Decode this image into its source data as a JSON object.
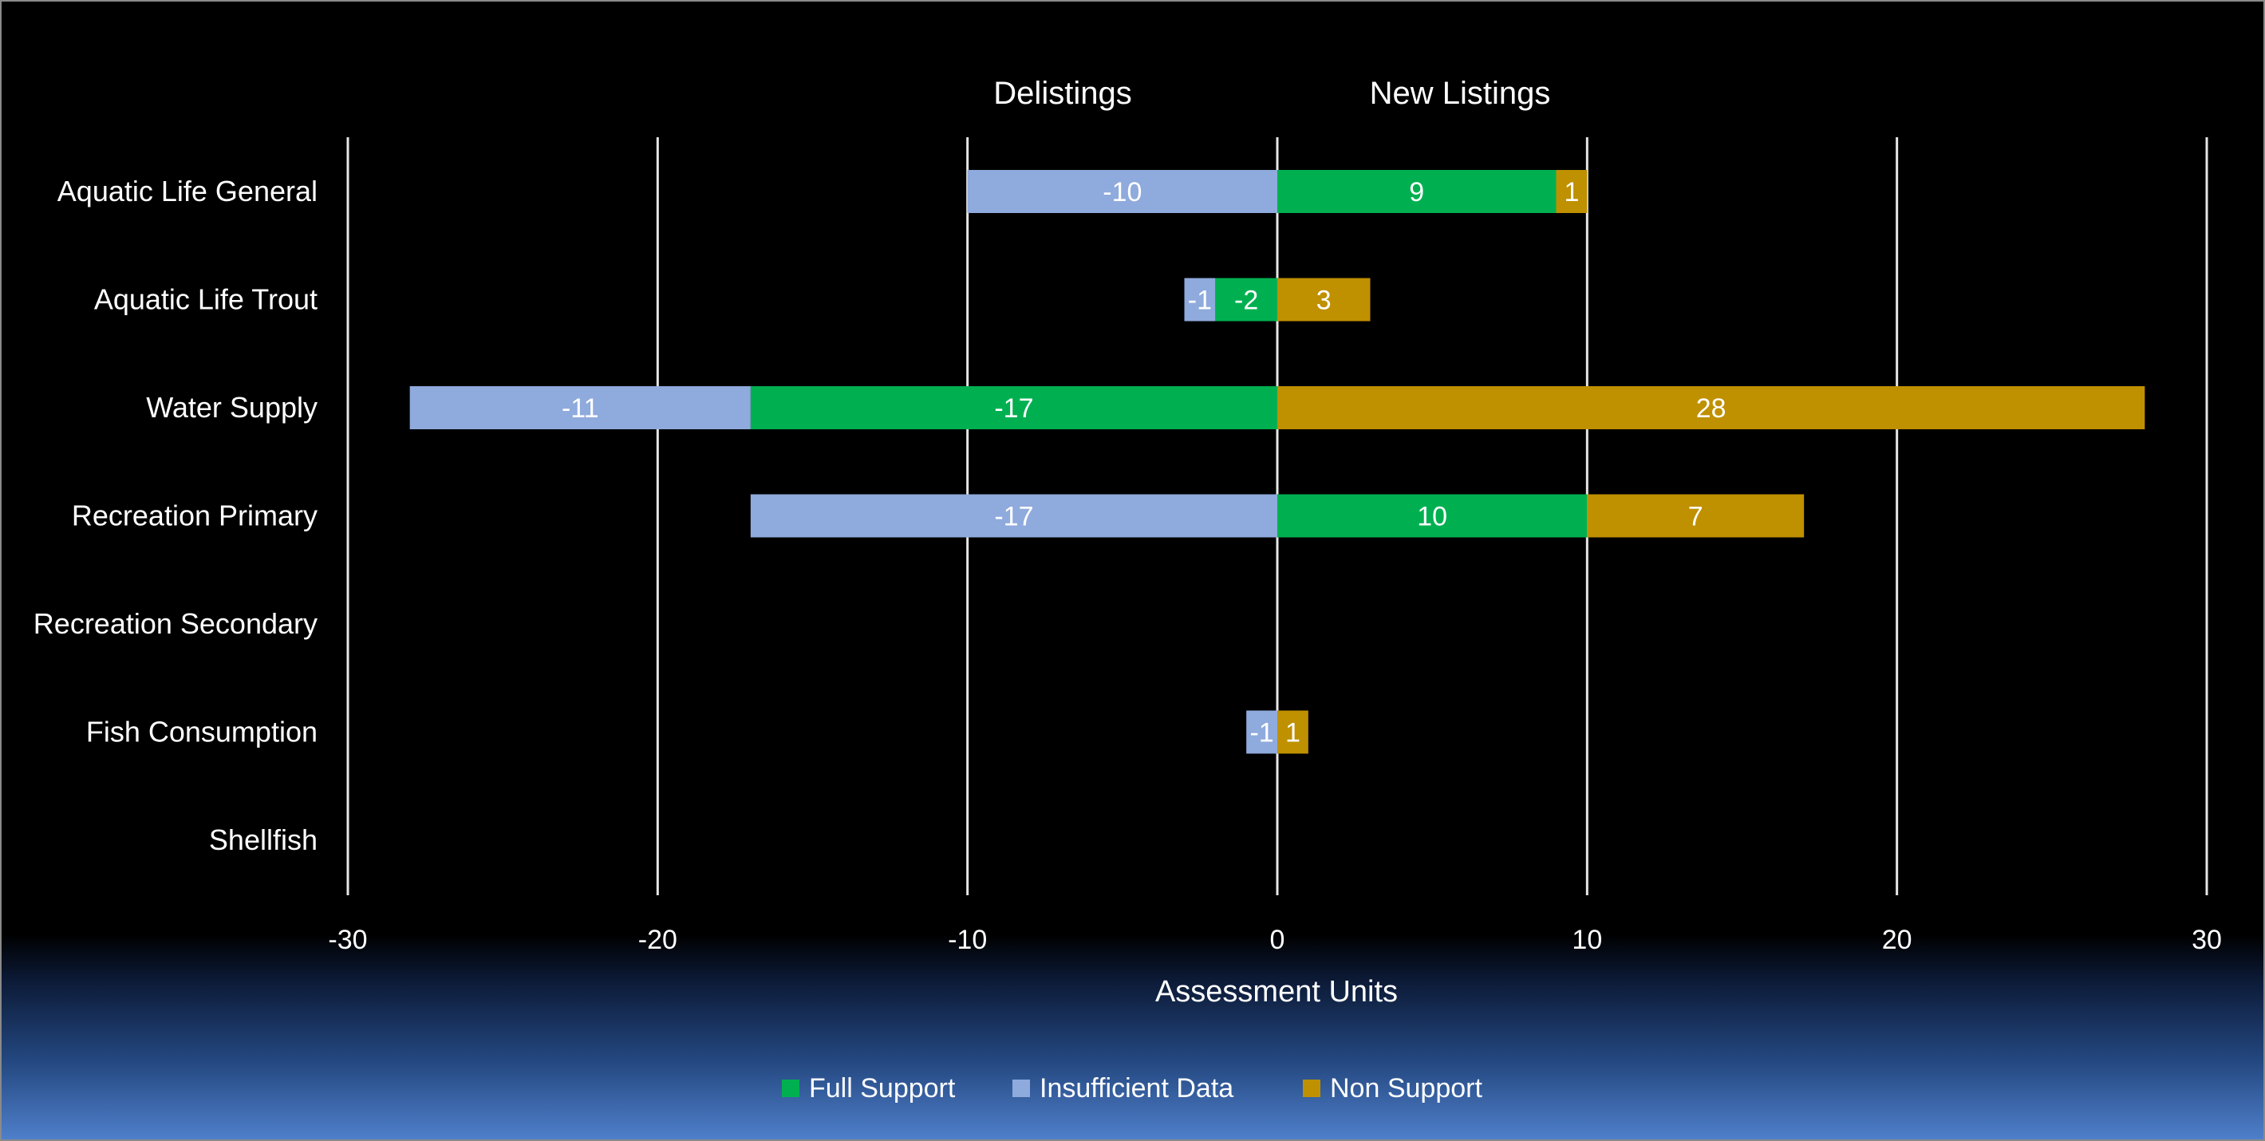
{
  "chart_data": {
    "type": "bar",
    "orientation": "horizontal",
    "stacked": true,
    "categories": [
      "Aquatic Life General",
      "Aquatic Life Trout",
      "Water Supply",
      "Recreation Primary",
      "Recreation Secondary",
      "Fish Consumption",
      "Shellfish"
    ],
    "series": [
      {
        "name": "Full Support",
        "color": "#00b050",
        "values": [
          9,
          -2,
          -17,
          10,
          0,
          0,
          0
        ]
      },
      {
        "name": "Insufficient Data",
        "color": "#8faadc",
        "values": [
          -10,
          -1,
          -11,
          -17,
          0,
          -1,
          0
        ]
      },
      {
        "name": "Non Support",
        "color": "#bf9000",
        "values": [
          1,
          3,
          28,
          7,
          0,
          1,
          0
        ]
      }
    ],
    "xlim": [
      -30,
      30
    ],
    "xticks": [
      "-30",
      "-20",
      "-10",
      "0",
      "10",
      "20",
      "30"
    ],
    "xlabel": "Assessment Units",
    "ylabel": "",
    "annotations": [
      "Delistings",
      "New Listings"
    ],
    "grid": true,
    "legend_position": "bottom"
  }
}
